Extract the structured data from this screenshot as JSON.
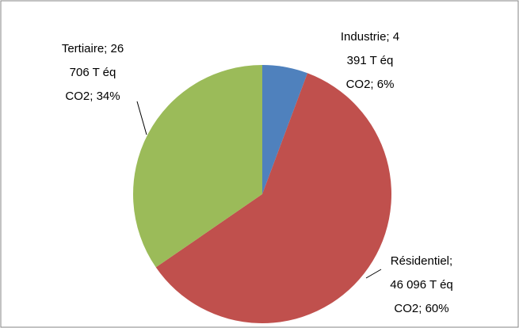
{
  "chart_data": {
    "type": "pie",
    "categories": [
      "Industrie",
      "Résidentiel",
      "Tertiaire"
    ],
    "values": [
      4391,
      46096,
      26706
    ],
    "value_labels": [
      "Industrie; 4 391 T éq CO2; 6%",
      "Résidentiel; 46 096 T éq CO2; 60%",
      "Tertiaire; 26 706 T éq CO2; 34%"
    ],
    "colors": [
      "#4f81bd",
      "#c0504d",
      "#9bbb59"
    ],
    "start_angle": 0,
    "direction": "clockwise"
  }
}
